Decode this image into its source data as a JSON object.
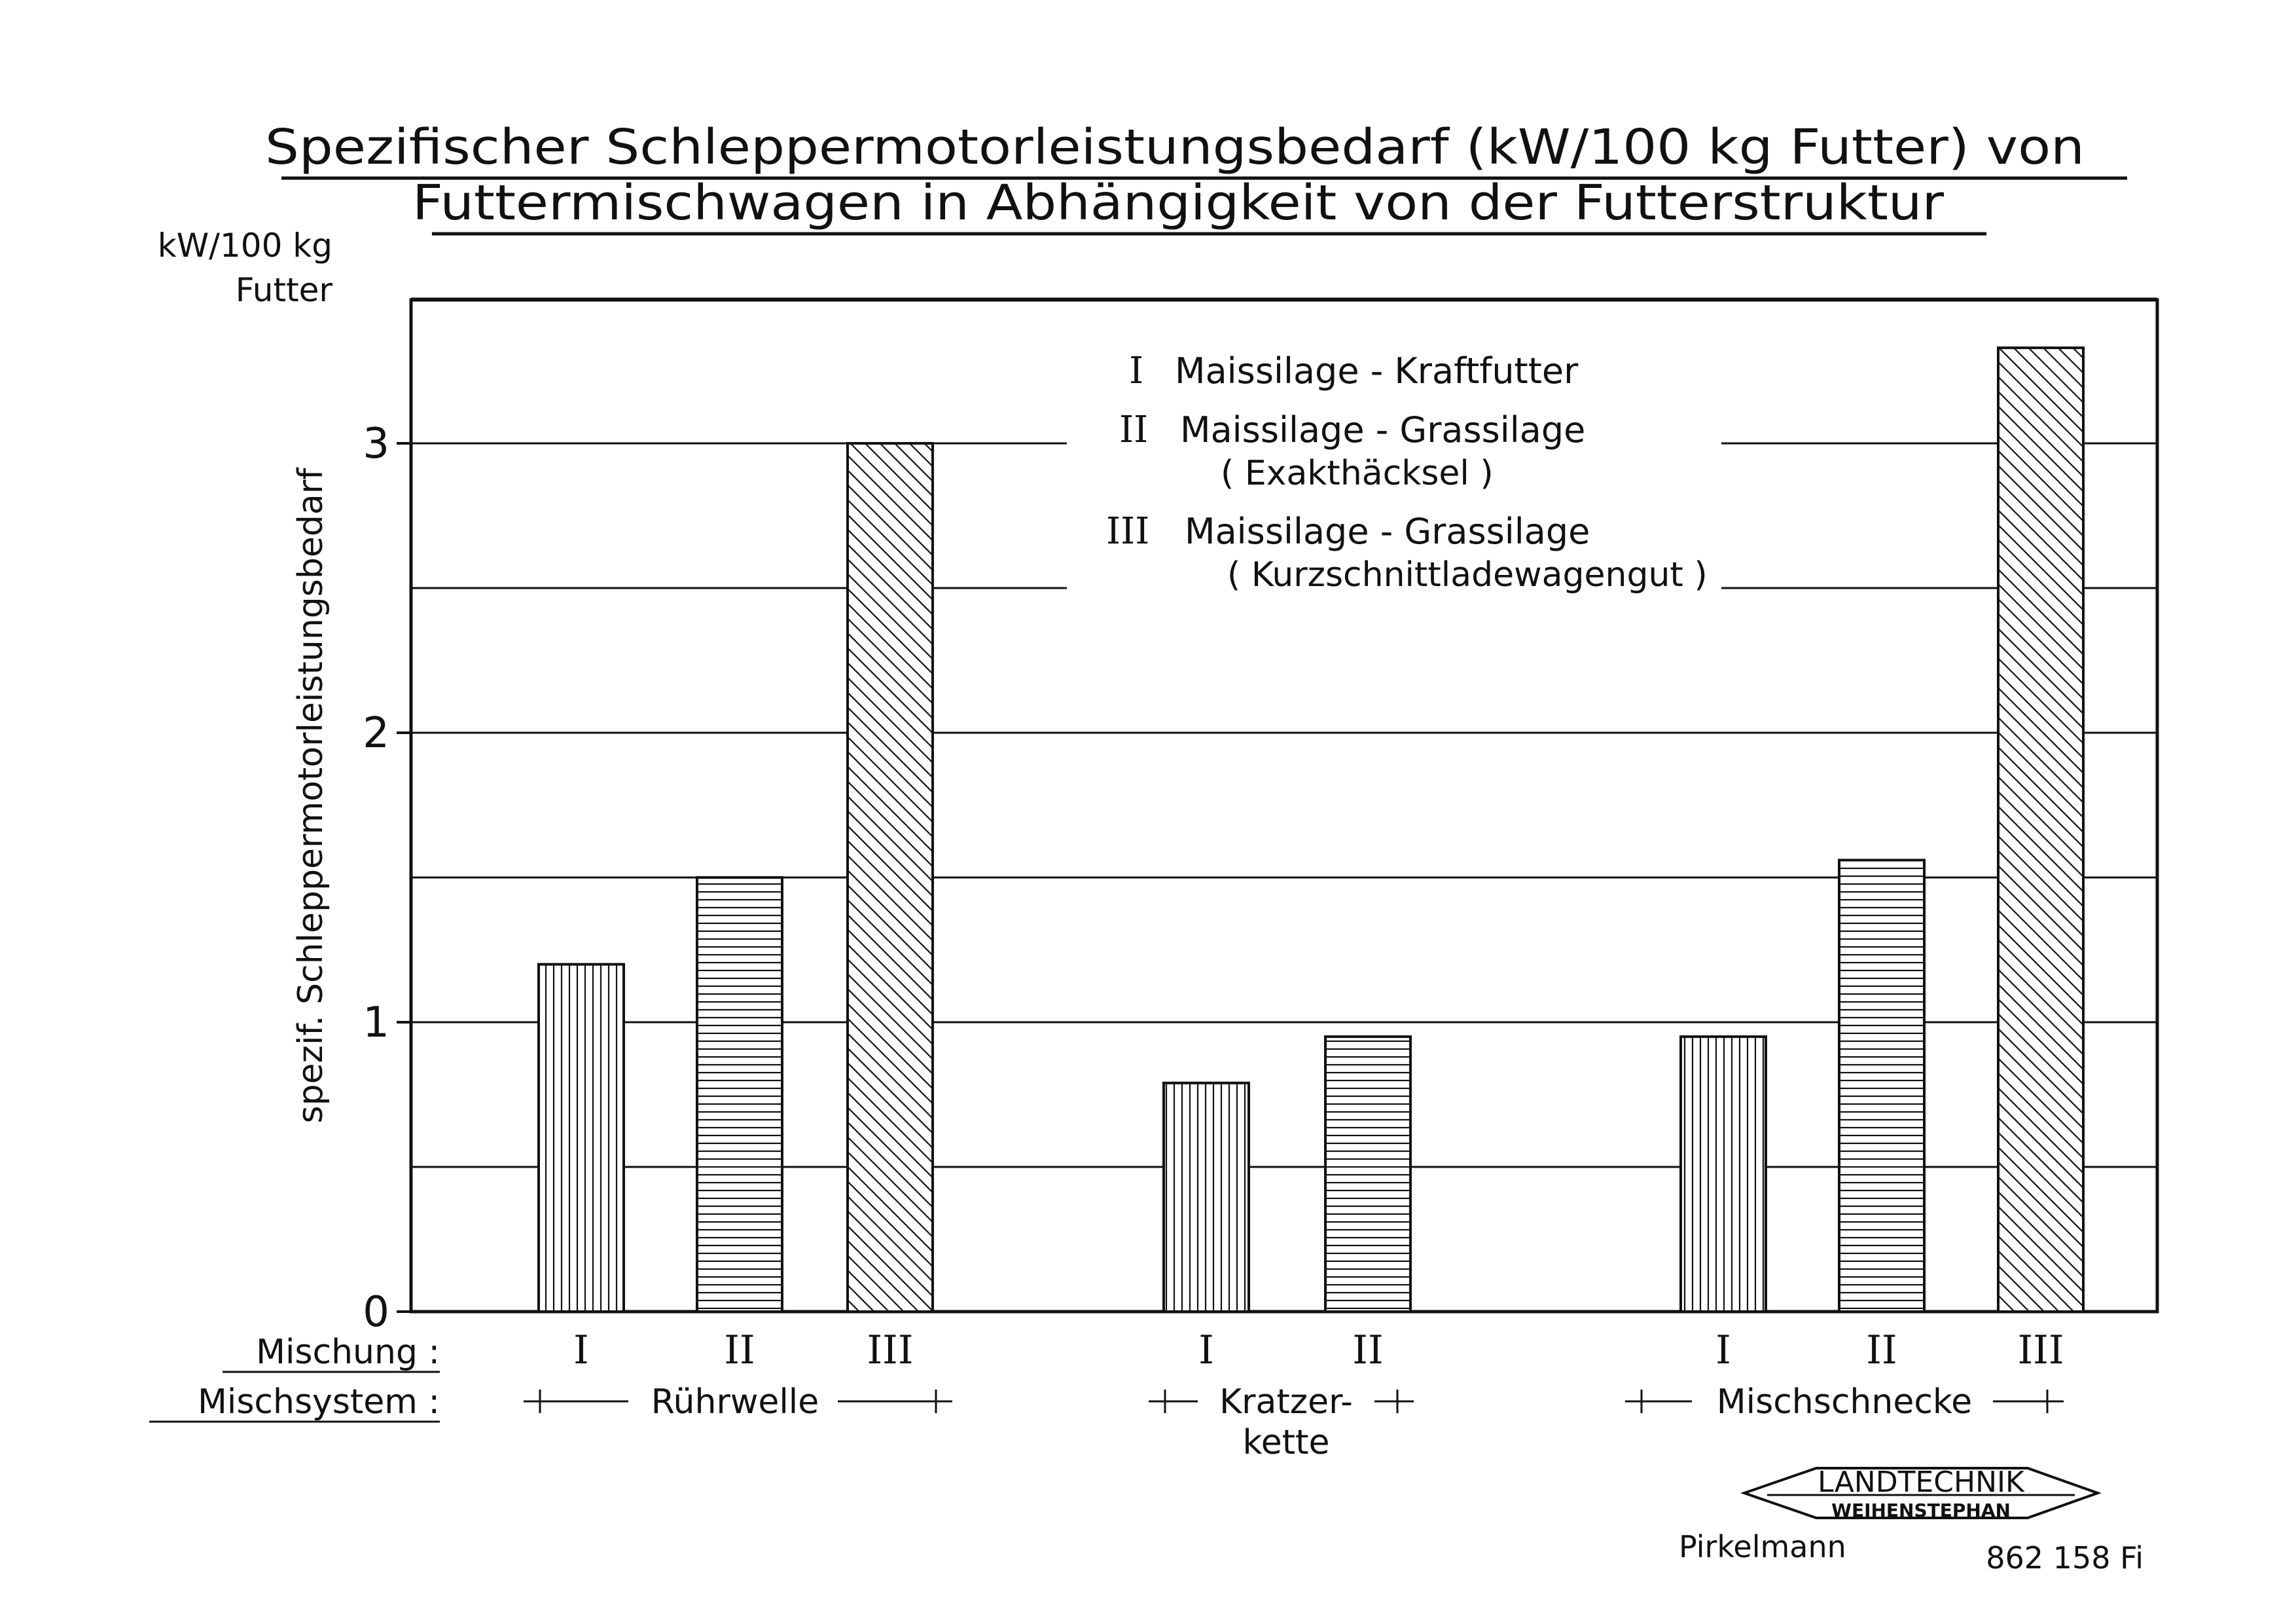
{
  "chart_data": {
    "type": "bar",
    "title_line1": "Spezifischer Schleppermotorleistungsbedarf (kW/100 kg Futter) von",
    "title_line2": "Futtermischwagen in Abhängigkeit von der Futterstruktur",
    "y_unit_line1": "kW/100 kg",
    "y_unit_line2": "Futter",
    "ylabel": "spezif. Schleppermotorleistungsbedarf",
    "ylim": [
      0,
      3.5
    ],
    "yticks": [
      "0",
      "1",
      "2",
      "3"
    ],
    "grid": true,
    "row_labels": {
      "mixture": "Mischung :",
      "system": "Mischsystem :"
    },
    "legend": {
      "placement": "top-center",
      "items": [
        {
          "code": "I",
          "name": "Maissilage - Kraftfutter",
          "sub": "",
          "pattern": "vertical"
        },
        {
          "code": "II",
          "name": "Maissilage - Grassilage",
          "sub": "( Exakthäcksel )",
          "pattern": "horizontal"
        },
        {
          "code": "III",
          "name": "Maissilage - Grassilage",
          "sub": "( Kurzschnittladewagengut )",
          "pattern": "diagonal"
        }
      ]
    },
    "groups": [
      {
        "system": "Rührwelle",
        "system_line2": "",
        "bars": [
          {
            "mixture": "I",
            "value": 1.2
          },
          {
            "mixture": "II",
            "value": 1.5
          },
          {
            "mixture": "III",
            "value": 3.0
          }
        ]
      },
      {
        "system": "Kratzer-",
        "system_line2": "kette",
        "bars": [
          {
            "mixture": "I",
            "value": 0.79
          },
          {
            "mixture": "II",
            "value": 0.95
          }
        ]
      },
      {
        "system": "Mischschnecke",
        "system_line2": "",
        "bars": [
          {
            "mixture": "I",
            "value": 0.95
          },
          {
            "mixture": "II",
            "value": 1.56
          },
          {
            "mixture": "III",
            "value": 3.33
          }
        ]
      }
    ]
  },
  "logo": {
    "line1": "LANDTECHNIK",
    "line2": "WEIHENSTEPHAN"
  },
  "footer": {
    "author": "Pirkelmann",
    "code": "862 158 Fi"
  }
}
